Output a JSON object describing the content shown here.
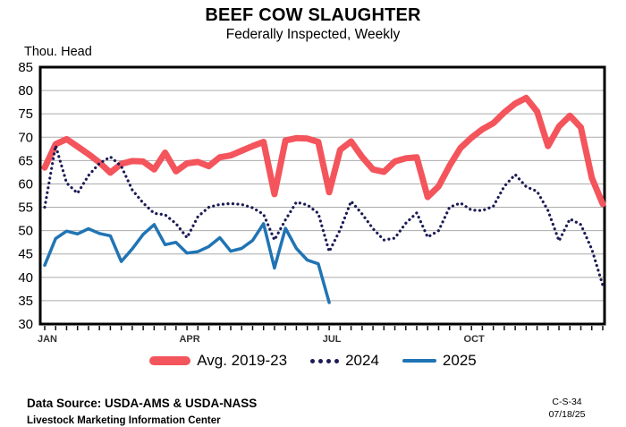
{
  "header": {
    "title": "BEEF COW SLAUGHTER",
    "subtitle": "Federally Inspected, Weekly"
  },
  "y_axis_unit_label": "Thou. Head",
  "footer": {
    "data_source": "Data Source:  USDA-AMS & USDA-NASS",
    "organization": "Livestock Marketing Information Center",
    "chart_id": "C-S-34",
    "date": "07/18/25"
  },
  "chart_data": {
    "type": "line",
    "title": "BEEF COW SLAUGHTER",
    "subtitle": "Federally Inspected, Weekly",
    "ylabel": "Thou. Head",
    "xlabel": "",
    "ylim": [
      30,
      85
    ],
    "ytick_step": 5,
    "grid": true,
    "legend_position": "bottom",
    "x_unit": "week of year",
    "weeks": 52,
    "month_ticks": [
      {
        "label": "JAN",
        "week": 1
      },
      {
        "label": "APR",
        "week": 14
      },
      {
        "label": "JUL",
        "week": 27
      },
      {
        "label": "OCT",
        "week": 40
      }
    ],
    "series": [
      {
        "name": "Avg. 2019-23",
        "style": "thick",
        "color": "#F4545C",
        "values": [
          63.5,
          68.5,
          69.6,
          68.0,
          66.4,
          64.6,
          62.4,
          64.3,
          64.9,
          64.8,
          63.1,
          66.7,
          62.7,
          64.4,
          64.7,
          63.8,
          65.7,
          66.1,
          67.1,
          68.1,
          69.0,
          57.8,
          69.3,
          69.8,
          69.7,
          69.0,
          58.2,
          67.3,
          69.1,
          65.8,
          63.1,
          62.6,
          64.8,
          65.5,
          65.7,
          57.2,
          59.5,
          63.9,
          67.7,
          69.9,
          71.7,
          73.0,
          75.3,
          77.2,
          78.4,
          75.5,
          68.1,
          72.3,
          74.6,
          72.1,
          61.3,
          55.7
        ]
      },
      {
        "name": "2024",
        "style": "dotted",
        "color": "#1B1B55",
        "values": [
          55.0,
          68.2,
          60.2,
          58.0,
          61.8,
          64.4,
          65.8,
          63.8,
          58.7,
          55.9,
          53.7,
          53.4,
          51.5,
          48.5,
          53.0,
          55.0,
          55.6,
          55.8,
          55.6,
          54.9,
          53.5,
          48.0,
          52.3,
          56.1,
          55.5,
          53.7,
          45.5,
          50.2,
          56.3,
          53.6,
          50.4,
          48.0,
          48.4,
          51.6,
          53.8,
          48.6,
          50.0,
          55.0,
          55.9,
          54.4,
          54.3,
          55.2,
          59.5,
          62.0,
          59.4,
          58.4,
          54.3,
          47.8,
          52.5,
          51.3,
          46.0,
          38.3
        ]
      },
      {
        "name": "2025",
        "style": "solid",
        "color": "#2074B4",
        "values": [
          42.6,
          48.3,
          49.9,
          49.3,
          50.4,
          49.4,
          48.9,
          43.4,
          46.1,
          49.2,
          51.3,
          47.0,
          47.5,
          45.2,
          45.5,
          46.6,
          48.5,
          45.6,
          46.2,
          47.9,
          51.5,
          42.0,
          50.5,
          46.2,
          43.7,
          42.9,
          34.6
        ]
      }
    ]
  }
}
